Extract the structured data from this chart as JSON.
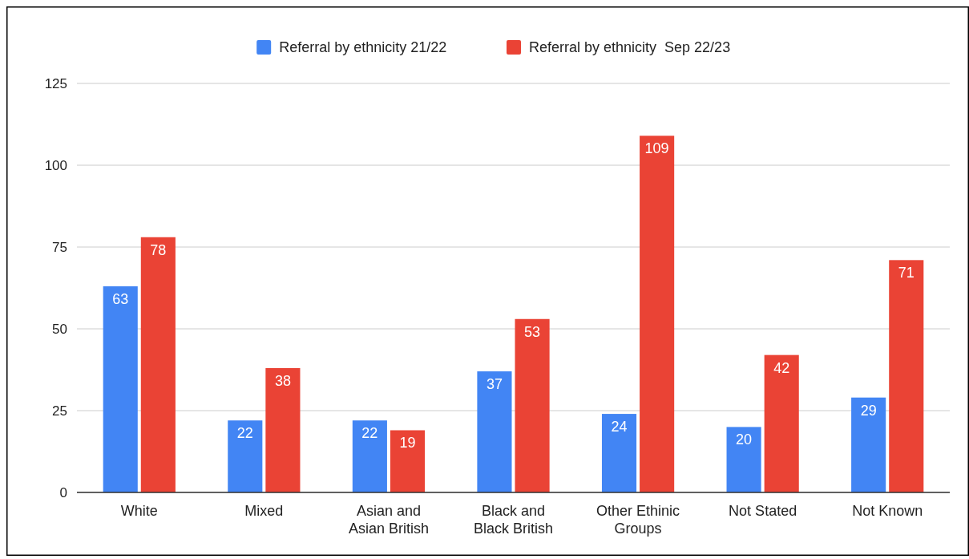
{
  "chart_data": {
    "type": "bar",
    "categories": [
      "White",
      "Mixed",
      "Asian and Asian British",
      "Black and Black British",
      "Other Ethinic Groups",
      "Not Stated",
      "Not Known"
    ],
    "series": [
      {
        "name": "Referral by ethnicity 21/22",
        "color": "#4285f4",
        "values": [
          63,
          22,
          22,
          37,
          24,
          20,
          29
        ]
      },
      {
        "name": "Referral by ethnicity  Sep 22/23",
        "color": "#ea4335",
        "values": [
          78,
          38,
          19,
          53,
          109,
          42,
          71
        ]
      }
    ],
    "ylim": [
      0,
      125
    ],
    "yticks": [
      0,
      25,
      50,
      75,
      100,
      125
    ],
    "grid": "y",
    "legend": "top",
    "data_labels": true
  }
}
